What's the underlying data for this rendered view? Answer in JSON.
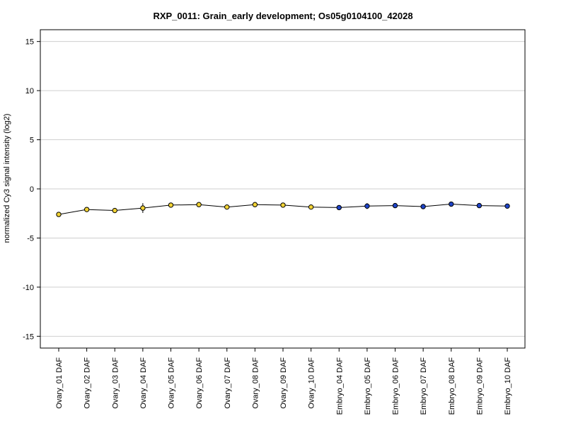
{
  "chart_data": {
    "type": "line",
    "title": "RXP_0011: Grain_early development; Os05g0104100_42028",
    "xlabel": "",
    "ylabel": "normalized Cy3 signal intensity (log2)",
    "ylim": [
      -16.2,
      16.2
    ],
    "yticks": [
      15,
      10,
      5,
      0,
      -5,
      -10,
      -15
    ],
    "grid": true,
    "categories": [
      "Ovary_01 DAF",
      "Ovary_02 DAF",
      "Ovary_03 DAF",
      "Ovary_04 DAF",
      "Ovary_05 DAF",
      "Ovary_06 DAF",
      "Ovary_07 DAF",
      "Ovary_08 DAF",
      "Ovary_09 DAF",
      "Ovary_10 DAF",
      "Embryo_04 DAF",
      "Embryo_05 DAF",
      "Embryo_06 DAF",
      "Embryo_07 DAF",
      "Embryo_08 DAF",
      "Embryo_09 DAF",
      "Embryo_10 DAF"
    ],
    "series": [
      {
        "values": [
          -2.6,
          -2.1,
          -2.2,
          -1.95,
          -1.65,
          -1.6,
          -1.85,
          -1.6,
          -1.65,
          -1.85,
          -1.9,
          -1.75,
          -1.7,
          -1.8,
          -1.55,
          -1.7,
          -1.75
        ],
        "error": [
          0.1,
          0.15,
          0.1,
          0.5,
          0.1,
          0.1,
          0.1,
          0.1,
          0.1,
          0.1,
          0.1,
          0.3,
          0.1,
          0.1,
          0.1,
          0.1,
          0.1
        ],
        "colors": [
          "#f1d234",
          "#f1d234",
          "#f1d234",
          "#f1d234",
          "#f1d234",
          "#f1d234",
          "#f1d234",
          "#f1d234",
          "#f1d234",
          "#f1d234",
          "#1f44c8",
          "#1f44c8",
          "#1f44c8",
          "#1f44c8",
          "#1f44c8",
          "#1f44c8",
          "#1f44c8"
        ]
      }
    ]
  }
}
